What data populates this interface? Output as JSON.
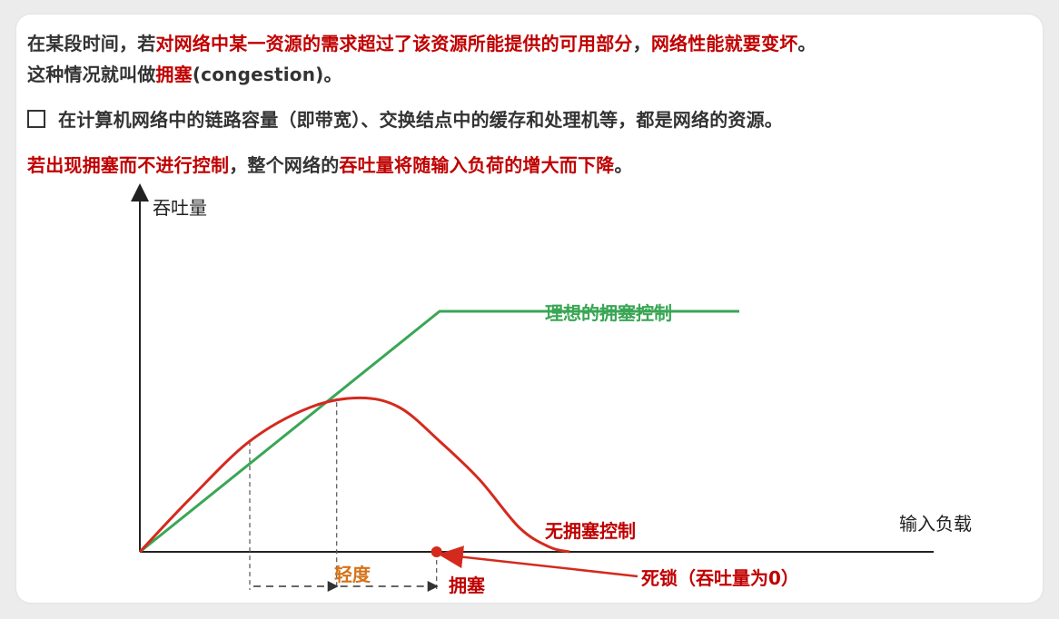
{
  "paragraph": {
    "line1": [
      {
        "text": "在某段时间，若",
        "red": false
      },
      {
        "text": "对网络中某一资源的需求超过了该资源所能提供的可用部分",
        "red": true
      },
      {
        "text": "，",
        "red": false
      },
      {
        "text": "网络性能就要变坏",
        "red": true
      },
      {
        "text": "。",
        "red": false
      }
    ],
    "line2": [
      {
        "text": "这种情况就叫做",
        "red": false
      },
      {
        "text": "拥塞",
        "red": true
      },
      {
        "text": "(congestion)。",
        "red": false
      }
    ],
    "bullet": "在计算机网络中的链路容量（即带宽）、交换结点中的缓存和处理机等，都是网络的资源。",
    "line4": [
      {
        "text": "若",
        "red": true
      },
      {
        "text": "出现拥塞而不进行控制",
        "red": true
      },
      {
        "text": "，整个网络的",
        "red": false
      },
      {
        "text": "吞吐量将随输入负荷的增大而下降",
        "red": true
      },
      {
        "text": "。",
        "red": false
      }
    ]
  },
  "colors": {
    "green": "#3aa655",
    "red": "#d42a1e",
    "orange": "#d4731a",
    "text": "#333333"
  },
  "chart_data": {
    "type": "line",
    "ylabel": "吞吐量",
    "xlabel": "输入负载",
    "series": [
      {
        "name": "理想的拥塞控制",
        "color": "#3aa655",
        "x": [
          0,
          3,
          6
        ],
        "y": [
          0,
          1.0,
          1.0
        ]
      },
      {
        "name": "无拥塞控制",
        "color": "#d42a1e",
        "x": [
          0,
          0.5,
          1.1,
          1.7,
          2.2,
          2.6,
          3.0,
          3.4,
          3.8,
          4.1,
          4.3
        ],
        "y": [
          0,
          0.22,
          0.46,
          0.6,
          0.64,
          0.6,
          0.46,
          0.3,
          0.1,
          0.02,
          0
        ]
      }
    ],
    "annotations": {
      "light": "轻度",
      "congestion": "拥塞",
      "deadlock": "死锁（吞吐量为0）"
    },
    "regions": [
      {
        "label": "轻度",
        "x": [
          1.1,
          1.97
        ]
      },
      {
        "label": "拥塞",
        "x": [
          1.97,
          2.97
        ]
      }
    ],
    "deadlock_x": 2.97,
    "xlim": [
      0,
      6.0
    ],
    "ylim": [
      0,
      1.5
    ],
    "grid": false
  }
}
